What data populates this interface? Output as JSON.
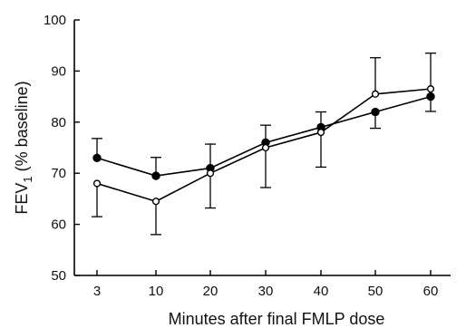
{
  "chart_data": {
    "type": "line",
    "xlabel": "Minutes after final FMLP dose",
    "ylabel_main": "FEV",
    "ylabel_sub": "1",
    "ylabel_rest": " (% baseline)",
    "ylim": [
      50,
      100
    ],
    "yticks": [
      50,
      60,
      70,
      80,
      90,
      100
    ],
    "categories": [
      "3",
      "10",
      "20",
      "30",
      "40",
      "50",
      "60"
    ],
    "grid": false,
    "series": [
      {
        "marker": "filled-circle",
        "color": "#000000",
        "values": [
          73,
          69.5,
          71,
          76,
          79,
          82,
          85
        ],
        "error_upper": [
          3.8,
          3.6,
          4.7,
          3.4,
          3.0,
          0,
          0
        ],
        "error_lower": [
          0,
          0,
          0,
          0,
          0,
          3.2,
          2.9
        ]
      },
      {
        "marker": "open-circle",
        "color": "#000000",
        "values": [
          68,
          64.5,
          70,
          75,
          78,
          85.5,
          86.5
        ],
        "error_upper": [
          0,
          0,
          0,
          0,
          0,
          7.1,
          7
        ],
        "error_lower": [
          6.5,
          6.5,
          6.8,
          7.8,
          6.8,
          0,
          0
        ]
      }
    ]
  }
}
